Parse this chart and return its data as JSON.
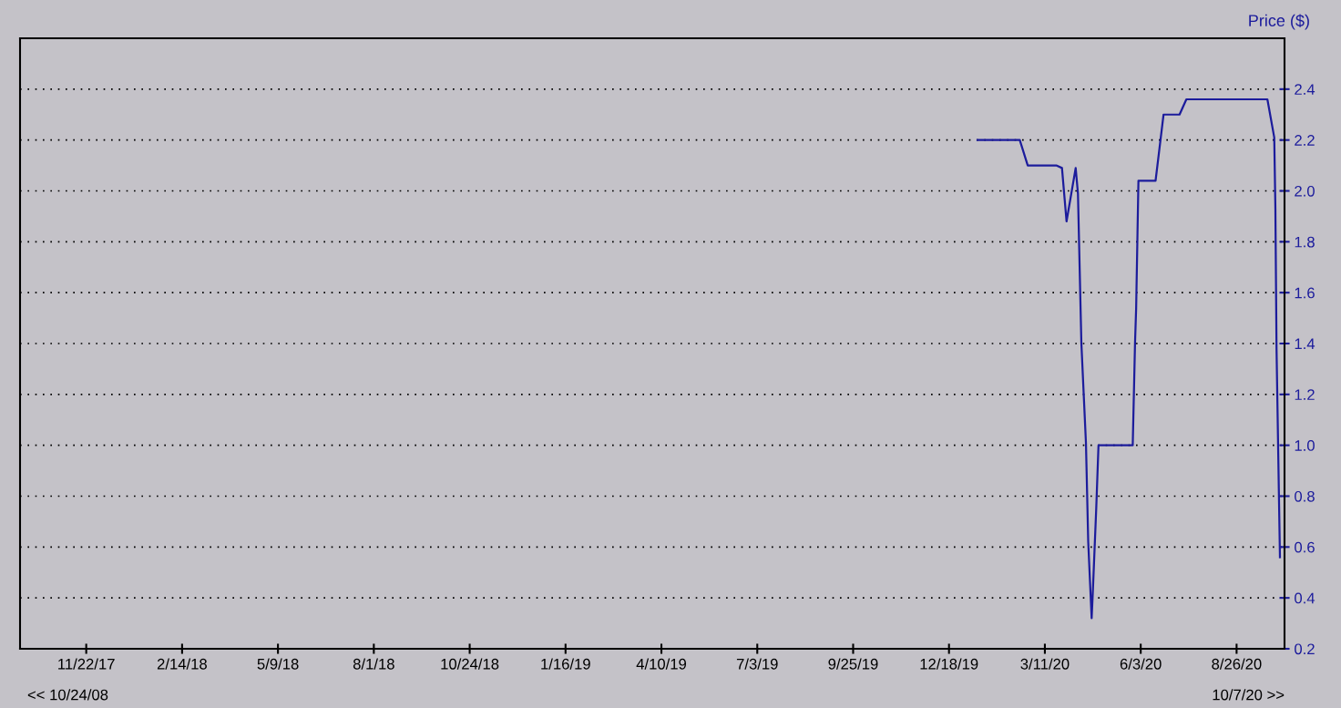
{
  "chart_data": {
    "type": "line",
    "ylabel": "Price ($)",
    "annotations": [
      "<< 10/24/08",
      "10/7/20 >>"
    ],
    "xlim": [
      "2017-09-25",
      "2020-10-07"
    ],
    "xticks": [
      {
        "value": "2017-11-22",
        "label": "11/22/17"
      },
      {
        "value": "2018-02-14",
        "label": "2/14/18"
      },
      {
        "value": "2018-05-09",
        "label": "5/9/18"
      },
      {
        "value": "2018-08-01",
        "label": "8/1/18"
      },
      {
        "value": "2018-10-24",
        "label": "10/24/18"
      },
      {
        "value": "2019-01-16",
        "label": "1/16/19"
      },
      {
        "value": "2019-04-10",
        "label": "4/10/19"
      },
      {
        "value": "2019-07-03",
        "label": "7/3/19"
      },
      {
        "value": "2019-09-25",
        "label": "9/25/19"
      },
      {
        "value": "2019-12-18",
        "label": "12/18/19"
      },
      {
        "value": "2020-03-11",
        "label": "3/11/20"
      },
      {
        "value": "2020-06-03",
        "label": "6/3/20"
      },
      {
        "value": "2020-08-26",
        "label": "8/26/20"
      }
    ],
    "ylim": [
      0.2,
      2.6
    ],
    "yticks": [
      0.2,
      0.4,
      0.6,
      0.8,
      {
        "value": 1,
        "label": "1.0"
      },
      1.2,
      1.4,
      1.6,
      1.8,
      {
        "value": 2,
        "label": "2.0"
      },
      2.2,
      2.4
    ],
    "grid": "y",
    "marker": "none",
    "line_style": "solid",
    "series": [
      {
        "color": "#1c1c9c",
        "x": [
          "2020-01-12",
          "2020-02-18",
          "2020-02-25",
          "2020-03-21",
          "2020-03-26",
          "2020-03-30",
          "2020-04-07",
          "2020-04-09",
          "2020-04-12",
          "2020-04-16",
          "2020-04-18",
          "2020-04-21",
          "2020-04-22",
          "2020-04-25",
          "2020-04-27",
          "2020-05-27",
          "2020-05-29",
          "2020-05-30",
          "2020-06-01",
          "2020-06-16",
          "2020-06-23",
          "2020-07-07",
          "2020-07-13",
          "2020-09-22",
          "2020-09-28",
          "2020-09-29",
          "2020-09-30",
          "2020-10-02",
          "2020-10-03"
        ],
        "values": [
          2.2,
          2.2,
          2.1,
          2.1,
          2.09,
          1.88,
          2.09,
          1.99,
          1.4,
          1.01,
          0.62,
          0.32,
          0.42,
          0.75,
          1.0,
          1.0,
          1.4,
          1.54,
          2.04,
          2.04,
          2.3,
          2.3,
          2.36,
          2.36,
          2.21,
          1.93,
          1.38,
          0.83,
          0.56
        ]
      }
    ]
  }
}
